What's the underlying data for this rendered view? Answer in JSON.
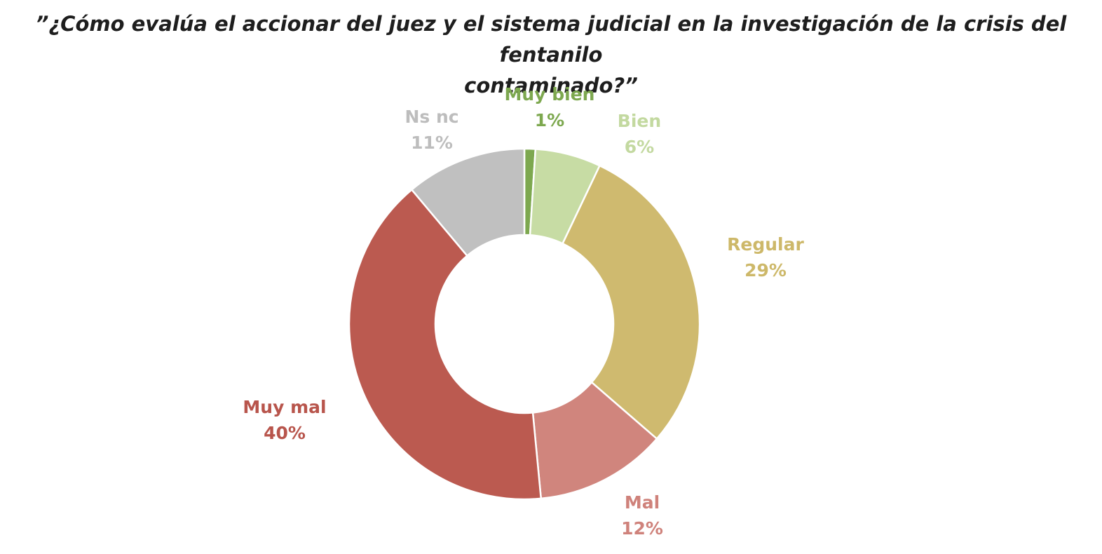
{
  "title": {
    "line1": "”¿Cómo evalúa el accionar del juez y el sistema judicial en la investigación de la crisis del fentanilo",
    "line2": "contaminado?”"
  },
  "chart_data": {
    "type": "pie",
    "title": "”¿Cómo evalúa el accionar del juez y el sistema judicial en la investigación de la crisis del fentanilo contaminado?”",
    "style": "donut",
    "start_angle_deg": 0,
    "direction": "clockwise",
    "slices": [
      {
        "label": "Muy bien",
        "value": 1,
        "value_label": "1%",
        "color": "#7da84f",
        "text_color": "#7da84f"
      },
      {
        "label": "Bien",
        "value": 6,
        "value_label": "6%",
        "color": "#c7dca4",
        "text_color": "#c3d9a0"
      },
      {
        "label": "Regular",
        "value": 29,
        "value_label": "29%",
        "color": "#cfba6f",
        "text_color": "#cdb869"
      },
      {
        "label": "Mal",
        "value": 12,
        "value_label": "12%",
        "color": "#d0857d",
        "text_color": "#cf827b"
      },
      {
        "label": "Muy mal",
        "value": 40,
        "value_label": "40%",
        "color": "#bb5a50",
        "text_color": "#b8554c"
      },
      {
        "label": "Ns nc",
        "value": 11,
        "value_label": "11%",
        "color": "#c0c0c0",
        "text_color": "#bdbdbd"
      }
    ]
  }
}
